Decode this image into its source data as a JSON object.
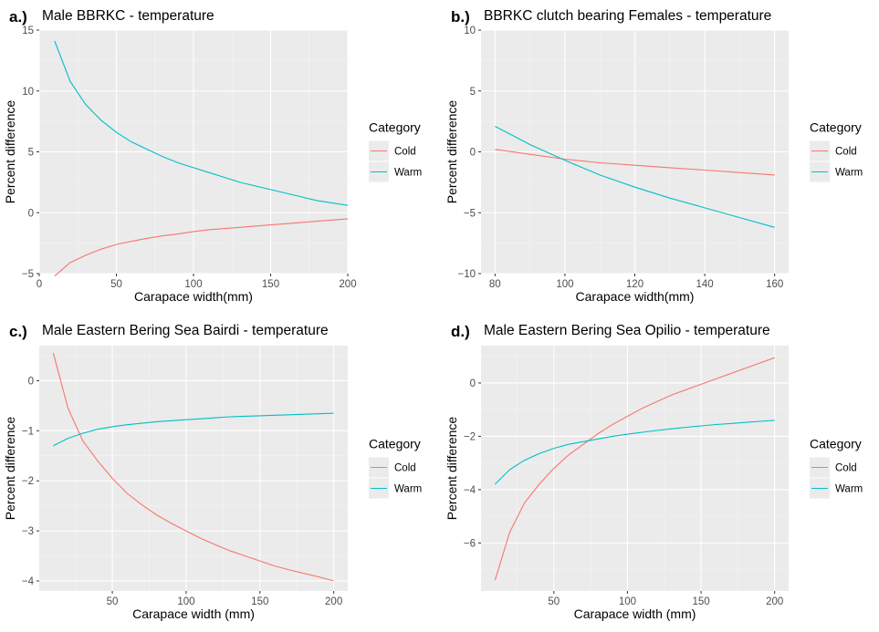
{
  "colors": {
    "panel_bg": "#EBEBEB",
    "grid_major": "#FFFFFF",
    "grid_minor": "#F4F4F4",
    "tick_text": "#4D4D4D",
    "legend_key_bg": "#EBEBEB",
    "cold": "#F8766D",
    "warm": "#00BFC4"
  },
  "chart_data": [
    {
      "id": "a",
      "tag": "a.)",
      "type": "line",
      "title": "Male BBRKC - temperature",
      "xlabel": "Carapace width(mm)",
      "ylabel": "Percent difference",
      "xlim": [
        0,
        200
      ],
      "ylim": [
        -5,
        15
      ],
      "xticks": [
        0,
        50,
        100,
        150,
        200
      ],
      "yticks": [
        -5,
        0,
        5,
        10,
        15
      ],
      "x": [
        10,
        20,
        30,
        40,
        50,
        60,
        70,
        80,
        90,
        100,
        110,
        120,
        130,
        140,
        150,
        160,
        170,
        180,
        190,
        200
      ],
      "series": [
        {
          "name": "Cold",
          "values": [
            -5.2,
            -4.1,
            -3.5,
            -3.0,
            -2.6,
            -2.35,
            -2.1,
            -1.9,
            -1.75,
            -1.55,
            -1.4,
            -1.3,
            -1.2,
            -1.1,
            -1.0,
            -0.9,
            -0.8,
            -0.7,
            -0.6,
            -0.5
          ]
        },
        {
          "name": "Warm",
          "values": [
            14.1,
            10.8,
            8.9,
            7.6,
            6.6,
            5.8,
            5.2,
            4.6,
            4.1,
            3.7,
            3.3,
            2.9,
            2.5,
            2.2,
            1.9,
            1.6,
            1.3,
            1.0,
            0.8,
            0.6
          ]
        }
      ],
      "legend": {
        "title": "Category",
        "entries": [
          "Cold",
          "Warm"
        ],
        "position": "right"
      },
      "grid": true
    },
    {
      "id": "b",
      "tag": "b.)",
      "type": "line",
      "title": "BBRKC clutch bearing Females - temperature",
      "xlabel": "Carapace width(mm)",
      "ylabel": "Percent difference",
      "xlim": [
        76,
        164
      ],
      "ylim": [
        -10,
        10
      ],
      "xticks": [
        80,
        100,
        120,
        140,
        160
      ],
      "yticks": [
        -10,
        -5,
        0,
        5,
        10
      ],
      "x": [
        80,
        90,
        100,
        110,
        120,
        130,
        140,
        150,
        160
      ],
      "series": [
        {
          "name": "Cold",
          "values": [
            0.2,
            -0.2,
            -0.6,
            -0.9,
            -1.1,
            -1.3,
            -1.5,
            -1.7,
            -1.9
          ]
        },
        {
          "name": "Warm",
          "values": [
            2.1,
            0.6,
            -0.7,
            -1.9,
            -2.9,
            -3.8,
            -4.6,
            -5.4,
            -6.2
          ]
        }
      ],
      "legend": {
        "title": "Category",
        "entries": [
          "Cold",
          "Warm"
        ],
        "position": "right"
      },
      "grid": true
    },
    {
      "id": "c",
      "tag": "c.)",
      "type": "line",
      "title": "Male Eastern Bering Sea Bairdi - temperature",
      "xlabel": "Carapace width (mm)",
      "ylabel": "Percent difference",
      "xlim": [
        0.5,
        209.5
      ],
      "ylim": [
        -4.2,
        0.7
      ],
      "xticks": [
        50,
        100,
        150,
        200
      ],
      "yticks": [
        -4,
        -3,
        -2,
        -1,
        0
      ],
      "x": [
        10,
        20,
        30,
        40,
        50,
        60,
        70,
        80,
        90,
        100,
        110,
        120,
        130,
        140,
        150,
        160,
        170,
        180,
        190,
        200
      ],
      "series": [
        {
          "name": "Cold",
          "values": [
            0.55,
            -0.55,
            -1.2,
            -1.6,
            -1.95,
            -2.25,
            -2.48,
            -2.68,
            -2.85,
            -3.0,
            -3.15,
            -3.28,
            -3.4,
            -3.5,
            -3.6,
            -3.7,
            -3.78,
            -3.85,
            -3.92,
            -4.0
          ]
        },
        {
          "name": "Warm",
          "values": [
            -1.3,
            -1.15,
            -1.05,
            -0.97,
            -0.92,
            -0.88,
            -0.85,
            -0.82,
            -0.8,
            -0.78,
            -0.76,
            -0.74,
            -0.72,
            -0.71,
            -0.7,
            -0.69,
            -0.68,
            -0.67,
            -0.66,
            -0.65
          ]
        }
      ],
      "legend": {
        "title": "Category",
        "entries": [
          "Cold",
          "Warm"
        ],
        "position": "right"
      },
      "grid": true
    },
    {
      "id": "d",
      "tag": "d.)",
      "type": "line",
      "title": "Male Eastern Bering Sea Opilio  - temperature",
      "xlabel": "Carapace width (mm)",
      "ylabel": "Percent difference",
      "xlim": [
        0.5,
        209.5
      ],
      "ylim": [
        -7.8,
        1.4
      ],
      "xticks": [
        50,
        100,
        150,
        200
      ],
      "yticks": [
        -6,
        -4,
        -2,
        0
      ],
      "x": [
        10,
        20,
        30,
        40,
        50,
        60,
        70,
        80,
        90,
        100,
        110,
        120,
        130,
        140,
        150,
        160,
        170,
        180,
        190,
        200
      ],
      "series": [
        {
          "name": "Cold",
          "values": [
            -7.4,
            -5.6,
            -4.5,
            -3.8,
            -3.2,
            -2.7,
            -2.3,
            -1.9,
            -1.55,
            -1.25,
            -0.95,
            -0.7,
            -0.45,
            -0.25,
            -0.05,
            0.15,
            0.35,
            0.55,
            0.75,
            0.95
          ]
        },
        {
          "name": "Warm",
          "values": [
            -3.8,
            -3.25,
            -2.9,
            -2.65,
            -2.45,
            -2.3,
            -2.2,
            -2.1,
            -2.0,
            -1.92,
            -1.85,
            -1.78,
            -1.72,
            -1.66,
            -1.61,
            -1.56,
            -1.52,
            -1.48,
            -1.44,
            -1.4
          ]
        }
      ],
      "legend": {
        "title": "Category",
        "entries": [
          "Cold",
          "Warm"
        ],
        "position": "right"
      },
      "grid": true
    }
  ]
}
